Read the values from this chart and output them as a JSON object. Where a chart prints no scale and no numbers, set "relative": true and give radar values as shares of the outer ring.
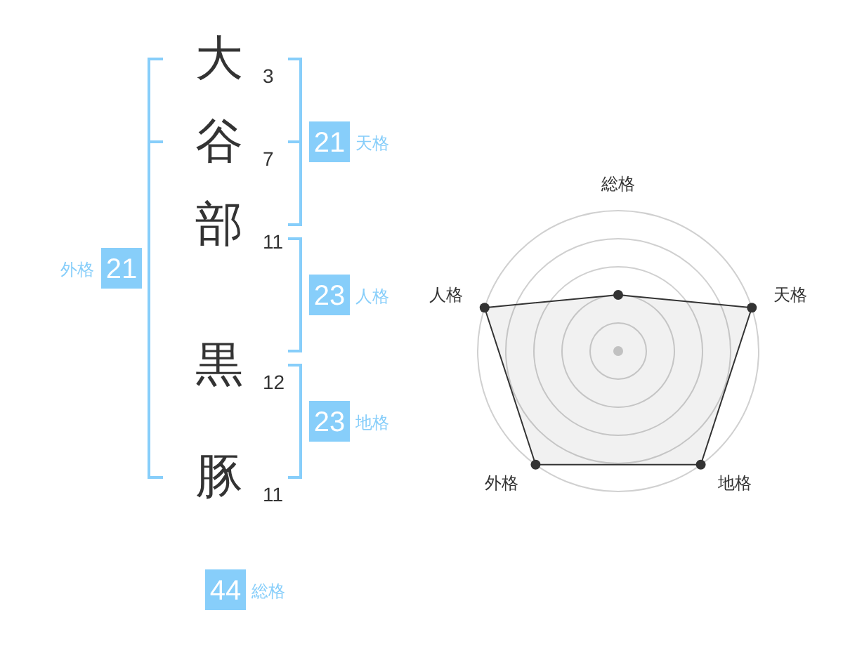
{
  "chart_data": [
    {
      "type": "other",
      "categories": [
        "大",
        "谷",
        "部",
        null,
        "黒",
        "豚"
      ],
      "values": [
        3,
        7,
        11,
        null,
        12,
        11
      ],
      "data_labels": true,
      "color": "#333333"
    },
    {
      "type": "other",
      "categories": [
        "天格",
        "人格",
        "地格",
        "外格",
        "総格"
      ],
      "values": [
        21,
        23,
        23,
        21,
        44
      ],
      "data_labels": true,
      "color": "#87cefa"
    },
    {
      "type": "radar",
      "categories": [
        "総格",
        "天格",
        "地格",
        "外格",
        "人格"
      ],
      "relative": true,
      "grid": true,
      "marker": "circle",
      "series": [
        {
          "color": "#333333",
          "values": [
            0.4,
            1,
            1,
            1,
            1
          ]
        }
      ]
    }
  ]
}
